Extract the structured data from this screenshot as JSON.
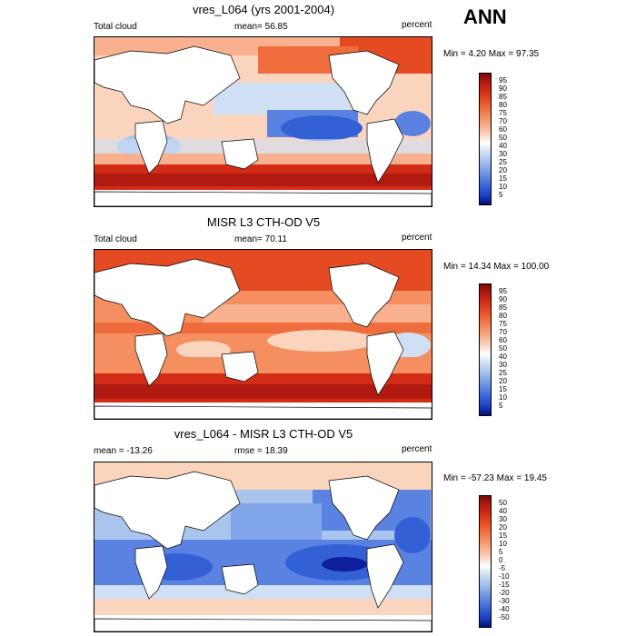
{
  "season": "ANN",
  "panels": [
    {
      "title": "vres_L064 (yrs 2001-2004)",
      "left_label": "Total cloud",
      "center_label": "mean=  56.85",
      "right_label": "percent",
      "minmax": "Min =   4.20 Max =  97.35",
      "colorbar_labels": [
        "95",
        "90",
        "85",
        "80",
        "75",
        "70",
        "60",
        "50",
        "40",
        "30",
        "25",
        "20",
        "15",
        "10",
        "5"
      ]
    },
    {
      "title": "MISR L3 CTH-OD V5",
      "left_label": "Total cloud",
      "center_label": "mean=  70.11",
      "right_label": "percent",
      "minmax": "Min =  14.34 Max = 100.00",
      "colorbar_labels": [
        "95",
        "90",
        "85",
        "80",
        "75",
        "70",
        "60",
        "50",
        "40",
        "30",
        "25",
        "20",
        "15",
        "10",
        "5"
      ]
    },
    {
      "title": "vres_L064 - MISR L3 CTH-OD V5",
      "left_label": "mean = -13.26",
      "center_label": "rmse =  18.39",
      "right_label": "percent",
      "minmax": "Min = -57.23 Max =  19.45",
      "colorbar_labels": [
        "50",
        "40",
        "30",
        "20",
        "15",
        "10",
        "5",
        "0",
        "-5",
        "-10",
        "-15",
        "-20",
        "-30",
        "-40",
        "-50"
      ]
    }
  ],
  "colors": {
    "scale": [
      "#7a0a0a",
      "#b01a10",
      "#d22c17",
      "#e44b22",
      "#ef6d3d",
      "#f58f60",
      "#f8b08e",
      "#fbd4be",
      "#ffffff",
      "#cfe0f4",
      "#a9c5ee",
      "#7fa4e8",
      "#5a82e0",
      "#3460d6",
      "#1b3ec6",
      "#0d1f9f",
      "#00116e"
    ]
  }
}
